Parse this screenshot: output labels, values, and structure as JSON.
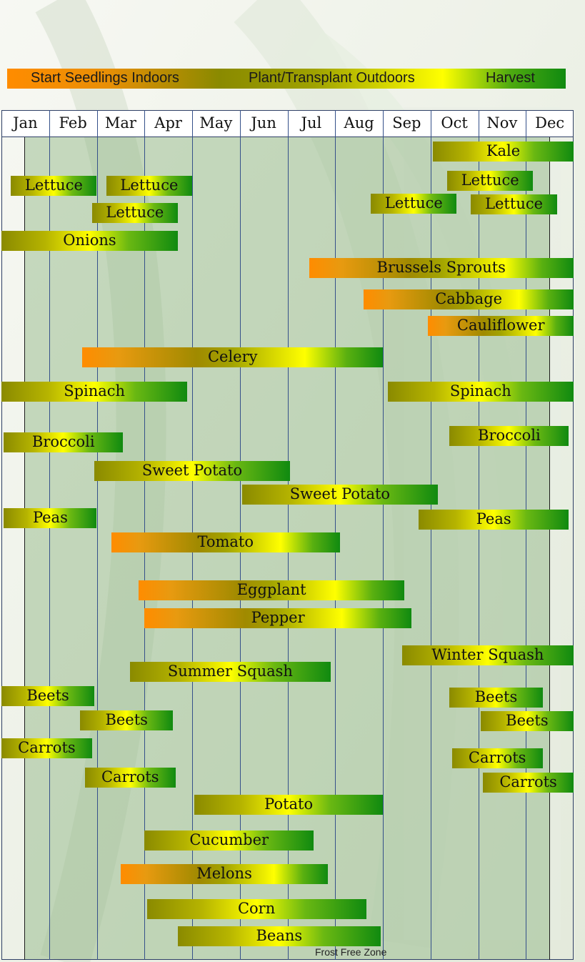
{
  "legend": {
    "start_indoors": "Start Seedlings Indoors",
    "plant_outdoors": "Plant/Transplant Outdoors",
    "harvest": "Harvest"
  },
  "colors": {
    "start_indoors": "#ff8c00",
    "plant_outdoors": "#8a8a00",
    "plant_mid": "#ffff00",
    "harvest": "#108a10",
    "grid_line": "#35508a",
    "frost_free_zone": "#a8c8a0"
  },
  "frost_zone_label": "Frost Free Zone",
  "chart_data": {
    "type": "gantt",
    "months": [
      "Jan",
      "Feb",
      "Mar",
      "Apr",
      "May",
      "Jun",
      "Jul",
      "Aug",
      "Sep",
      "Oct",
      "Nov",
      "Dec"
    ],
    "frost_free_zone": {
      "start_month": 1.5,
      "end_month": 12.5
    },
    "crops": [
      {
        "name": "Kale",
        "start": 10.05,
        "end": 13.0,
        "stages": "plant-harvest"
      },
      {
        "name": "Lettuce",
        "start": 1.2,
        "end": 3.0,
        "stages": "plant-harvest"
      },
      {
        "name": "Lettuce",
        "start": 3.2,
        "end": 5.0,
        "stages": "plant-harvest"
      },
      {
        "name": "Lettuce",
        "start": 10.35,
        "end": 12.15,
        "stages": "plant-harvest"
      },
      {
        "name": "Lettuce",
        "start": 8.75,
        "end": 10.55,
        "stages": "plant-harvest"
      },
      {
        "name": "Lettuce",
        "start": 10.85,
        "end": 12.65,
        "stages": "plant-harvest"
      },
      {
        "name": "Lettuce",
        "start": 2.9,
        "end": 4.7,
        "stages": "plant-harvest"
      },
      {
        "name": "Onions",
        "start": 1.0,
        "end": 4.7,
        "stages": "plant-harvest"
      },
      {
        "name": "Brussels Sprouts",
        "start": 7.45,
        "end": 13.0,
        "stages": "indoors-plant-harvest"
      },
      {
        "name": "Cabbage",
        "start": 8.6,
        "end": 13.0,
        "stages": "indoors-plant-harvest"
      },
      {
        "name": "Cauliflower",
        "start": 9.95,
        "end": 13.0,
        "stages": "indoors-plant-harvest"
      },
      {
        "name": "Celery",
        "start": 2.7,
        "end": 9.0,
        "stages": "indoors-plant-harvest"
      },
      {
        "name": "Spinach",
        "start": 1.0,
        "end": 4.9,
        "stages": "plant-harvest"
      },
      {
        "name": "Spinach",
        "start": 9.1,
        "end": 13.0,
        "stages": "plant-harvest"
      },
      {
        "name": "Broccoli",
        "start": 1.05,
        "end": 3.55,
        "stages": "plant-harvest"
      },
      {
        "name": "Broccoli",
        "start": 10.4,
        "end": 12.9,
        "stages": "plant-harvest"
      },
      {
        "name": "Sweet Potato",
        "start": 2.95,
        "end": 7.05,
        "stages": "plant-harvest"
      },
      {
        "name": "Sweet Potato",
        "start": 6.05,
        "end": 10.15,
        "stages": "plant-harvest"
      },
      {
        "name": "Peas",
        "start": 1.05,
        "end": 3.0,
        "stages": "plant-harvest"
      },
      {
        "name": "Peas",
        "start": 9.75,
        "end": 12.9,
        "stages": "plant-harvest"
      },
      {
        "name": "Tomato",
        "start": 3.3,
        "end": 8.1,
        "stages": "indoors-plant-harvest"
      },
      {
        "name": "Eggplant",
        "start": 3.88,
        "end": 9.45,
        "stages": "indoors-plant-harvest"
      },
      {
        "name": "Pepper",
        "start": 4.0,
        "end": 9.6,
        "stages": "indoors-plant-harvest"
      },
      {
        "name": "Winter Squash",
        "start": 9.4,
        "end": 13.0,
        "stages": "plant-harvest"
      },
      {
        "name": "Summer Squash",
        "start": 3.7,
        "end": 7.9,
        "stages": "plant-harvest"
      },
      {
        "name": "Beets",
        "start": 1.0,
        "end": 2.95,
        "stages": "plant-harvest"
      },
      {
        "name": "Beets",
        "start": 10.4,
        "end": 12.35,
        "stages": "plant-harvest"
      },
      {
        "name": "Beets",
        "start": 2.65,
        "end": 4.6,
        "stages": "plant-harvest"
      },
      {
        "name": "Beets",
        "start": 11.05,
        "end": 13.0,
        "stages": "plant-harvest"
      },
      {
        "name": "Carrots",
        "start": 1.0,
        "end": 2.9,
        "stages": "plant-harvest"
      },
      {
        "name": "Carrots",
        "start": 10.45,
        "end": 12.35,
        "stages": "plant-harvest"
      },
      {
        "name": "Carrots",
        "start": 2.75,
        "end": 4.65,
        "stages": "plant-harvest"
      },
      {
        "name": "Carrots",
        "start": 11.1,
        "end": 13.0,
        "stages": "plant-harvest"
      },
      {
        "name": "Potato",
        "start": 5.05,
        "end": 9.0,
        "stages": "plant-harvest"
      },
      {
        "name": "Cucumber",
        "start": 4.0,
        "end": 7.55,
        "stages": "plant-harvest"
      },
      {
        "name": "Melons",
        "start": 3.5,
        "end": 7.85,
        "stages": "indoors-plant-harvest"
      },
      {
        "name": "Corn",
        "start": 4.05,
        "end": 8.65,
        "stages": "plant-harvest"
      },
      {
        "name": "Beans",
        "start": 4.7,
        "end": 8.95,
        "stages": "plant-harvest"
      }
    ]
  }
}
